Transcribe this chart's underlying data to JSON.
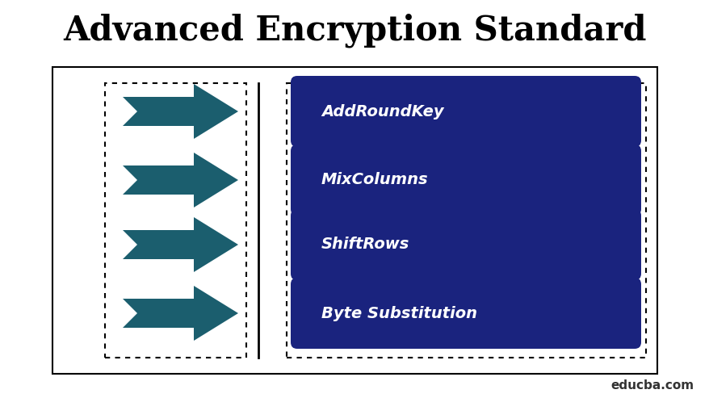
{
  "title": "Advanced Encryption Standard",
  "title_fontsize": 30,
  "title_fontweight": "bold",
  "background_color": "#ffffff",
  "outer_box_color": "#000000",
  "dashed_box_color": "#000000",
  "button_color": "#1a237e",
  "button_text_color": "#ffffff",
  "button_labels": [
    "AddRoundKey",
    "MixColumns",
    "ShiftRows",
    "Byte Substitution"
  ],
  "arrow_color": "#1b5e6e",
  "divider_color": "#000000",
  "watermark": "educba.com",
  "watermark_color": "#333333",
  "watermark_fontsize": 11
}
